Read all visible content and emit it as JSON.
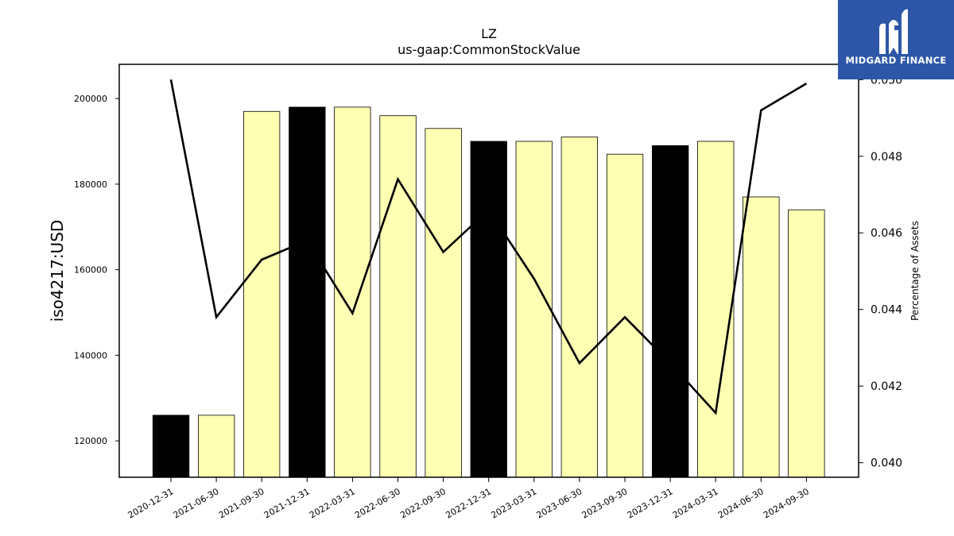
{
  "brand": {
    "name": "MIDGARD FINANCE",
    "color": "#2d56a8"
  },
  "chart_data": {
    "type": "bar",
    "title": "LZ",
    "subtitle": "us-gaap:CommonStockValue",
    "ylabel": "iso4217:USD",
    "y2label": "Percentage of Assets",
    "categories": [
      "2020-12-31",
      "2021-06-30",
      "2021-09-30",
      "2021-12-31",
      "2022-03-31",
      "2022-06-30",
      "2022-09-30",
      "2022-12-31",
      "2023-03-31",
      "2023-06-30",
      "2023-09-30",
      "2023-12-31",
      "2024-03-31",
      "2024-06-30",
      "2024-09-30"
    ],
    "series": [
      {
        "kind": "bar",
        "values": [
          126000,
          126000,
          197000,
          198000,
          198000,
          196000,
          193000,
          190000,
          190000,
          191000,
          187000,
          189000,
          190000,
          177000,
          174000
        ],
        "highlight": [
          true,
          false,
          false,
          true,
          false,
          false,
          false,
          true,
          false,
          false,
          false,
          true,
          false,
          false,
          false
        ],
        "colors": {
          "normal": "#ffffb3",
          "highlight": "#000000"
        }
      },
      {
        "kind": "line",
        "axis": "right",
        "values": [
          0.05,
          0.0438,
          0.0453,
          0.0458,
          0.0439,
          0.0474,
          0.0455,
          0.0466,
          0.0448,
          0.0426,
          0.0438,
          0.0426,
          0.0413,
          0.0492,
          0.0499
        ],
        "color": "#000000"
      }
    ],
    "ylim": [
      111500,
      208000
    ],
    "yticks": [
      120000,
      140000,
      160000,
      180000,
      200000
    ],
    "y2lim": [
      0.03962,
      0.0504
    ],
    "y2ticks": [
      "0.040",
      "0.042",
      "0.044",
      "0.046",
      "0.048",
      "0.050"
    ],
    "grid": false,
    "legend": "none"
  }
}
